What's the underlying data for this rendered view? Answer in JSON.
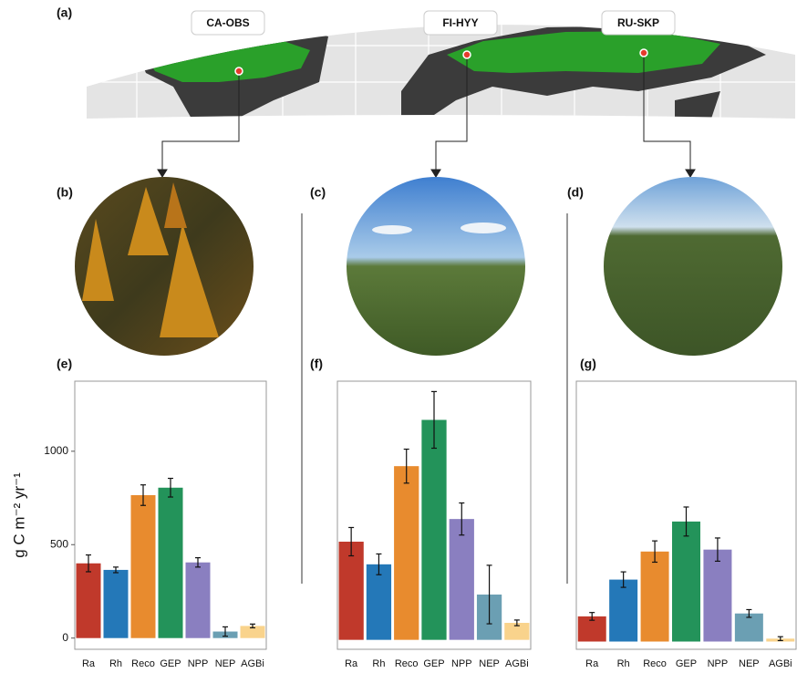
{
  "panels": [
    "(a)",
    "(b)",
    "(c)",
    "(d)",
    "(e)",
    "(f)",
    "(g)"
  ],
  "sites": [
    "CA-OBS",
    "FI-HYY",
    "RU-SKP"
  ],
  "chart_data": [
    {
      "type": "bar",
      "ylabel": "g C m⁻² yr⁻¹",
      "categories": [
        "Ra",
        "Rh",
        "Reco",
        "GEP",
        "NPP",
        "NEP",
        "AGBi"
      ],
      "values": [
        400,
        365,
        765,
        805,
        405,
        35,
        65
      ],
      "errors": [
        45,
        15,
        55,
        50,
        25,
        25,
        10
      ],
      "colors": [
        "#c0392b",
        "#2478b8",
        "#e88b2e",
        "#23935a",
        "#8a7fc0",
        "#6b9fb3",
        "#f9d38c"
      ],
      "ylim": [
        -60,
        1375
      ],
      "yticks": [
        0,
        {
          "value": 500,
          "label": "500"
        },
        {
          "value": 1000,
          "label": "1000"
        }
      ]
    },
    {
      "type": "bar",
      "categories": [
        "Ra",
        "Rh",
        "Reco",
        "GEP",
        "NPP",
        "NEP",
        "AGBi"
      ],
      "values": [
        520,
        400,
        920,
        1165,
        640,
        240,
        90
      ],
      "errors": [
        75,
        55,
        90,
        150,
        85,
        155,
        15
      ],
      "colors": [
        "#c0392b",
        "#2478b8",
        "#e88b2e",
        "#23935a",
        "#8a7fc0",
        "#6b9fb3",
        "#f9d38c"
      ],
      "ylim": [
        -50,
        1370
      ]
    },
    {
      "type": "bar",
      "categories": [
        "Ra",
        "Rh",
        "Reco",
        "GEP",
        "NPP",
        "NEP",
        "AGBi"
      ],
      "values": [
        130,
        320,
        465,
        620,
        475,
        145,
        15
      ],
      "errors": [
        20,
        40,
        55,
        75,
        60,
        20,
        10
      ],
      "colors": [
        "#c0392b",
        "#2478b8",
        "#e88b2e",
        "#23935a",
        "#8a7fc0",
        "#6b9fb3",
        "#f9d38c"
      ],
      "ylim": [
        -40,
        1345
      ]
    }
  ]
}
